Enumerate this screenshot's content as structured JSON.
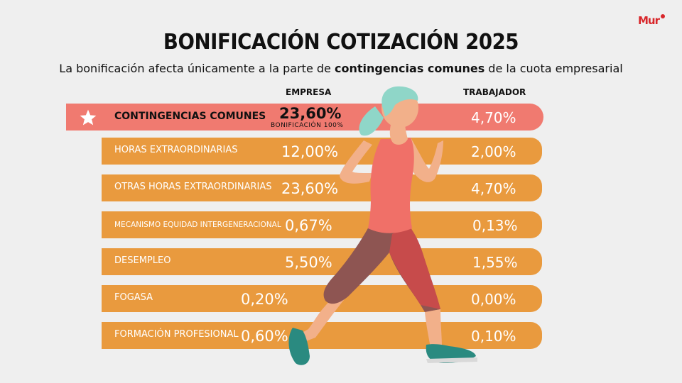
{
  "brand": {
    "logo_text": "Mur"
  },
  "title": "BONIFICACIÓN COTIZACIÓN 2025",
  "subtitle": {
    "before": "La bonificación afecta únicamente a la parte de ",
    "bold": "contingencias comunes",
    "after": " de la cuota empresarial"
  },
  "chart_data": {
    "type": "table",
    "columns": [
      "EMPRESA",
      "TRABAJADOR"
    ],
    "rows": [
      {
        "label": "CONTINGENCIAS COMUNES",
        "empresa": "23,60%",
        "trabajador": "4,70%",
        "note": "BONIFICACIÓN 100%",
        "highlight": true
      },
      {
        "label": "HORAS EXTRAORDINARIAS",
        "empresa": "12,00%",
        "trabajador": "2,00%"
      },
      {
        "label": "OTRAS HORAS EXTRAORDINARIAS",
        "empresa": "23,60%",
        "trabajador": "4,70%"
      },
      {
        "label": "MECANISMO EQUIDAD INTERGENERACIONAL",
        "empresa": "0,67%",
        "trabajador": "0,13%"
      },
      {
        "label": "DESEMPLEO",
        "empresa": "5,50%",
        "trabajador": "1,55%"
      },
      {
        "label": "FOGASA",
        "empresa": "0,20%",
        "trabajador": "0,00%"
      },
      {
        "label": "FORMACIÓN PROFESIONAL",
        "empresa": "0,60%",
        "trabajador": "0,10%"
      }
    ]
  },
  "colors": {
    "row": "#e99a3e",
    "highlight": "#f07a70",
    "background": "#efefef"
  },
  "icons": {
    "highlight_row": "star-icon"
  }
}
